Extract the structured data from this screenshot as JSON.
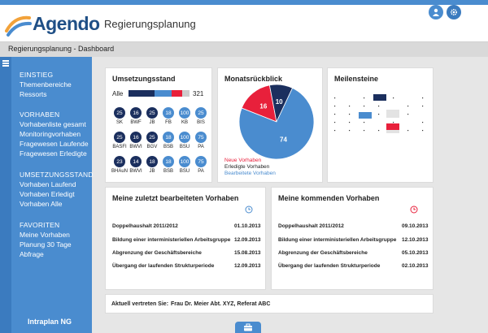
{
  "header": {
    "logo_text": "Agendo",
    "app_title": "Regierungsplanung",
    "icons": [
      "user-icon",
      "gear-icon"
    ]
  },
  "breadcrumb": "Regierungsplanung - Dashboard",
  "sidebar": {
    "groups": [
      {
        "head": "EINSTIEG",
        "items": [
          "Themenbereiche",
          "Ressorts"
        ]
      },
      {
        "head": "VORHABEN",
        "items": [
          "Vorhabenliste gesamt",
          "Monitoringvorhaben",
          "Fragewesen Laufende",
          "Fragewesen Erledigte"
        ]
      },
      {
        "head": "UMSETZUNGSSTAND",
        "items": [
          "Vorhaben Laufend",
          "Vorhaben Erledigt",
          "Vorhaben Alle"
        ]
      },
      {
        "head": "FAVORITEN",
        "items": [
          "Meine Vorhaben",
          "Planung 30 Tage",
          "Abfrage"
        ]
      }
    ],
    "footer": "Intraplan NG"
  },
  "umsetzung": {
    "title": "Umsetzungsstand",
    "alle_label": "Alle",
    "alle_count": "321",
    "alle_segments": [
      0.42,
      0.28,
      0.18,
      0.12
    ],
    "rows": [
      [
        {
          "v": "25",
          "l": "SK",
          "c": "dark"
        },
        {
          "v": "16",
          "l": "BWF",
          "c": "dark"
        },
        {
          "v": "25",
          "l": "JB",
          "c": "dark"
        },
        {
          "v": "18",
          "l": "FB",
          "c": "blue"
        },
        {
          "v": "100",
          "l": "KB",
          "c": "blue"
        },
        {
          "v": "25",
          "l": "BIS",
          "c": "blue"
        }
      ],
      [
        {
          "v": "25",
          "l": "BASFI",
          "c": "dark"
        },
        {
          "v": "16",
          "l": "BWVI",
          "c": "dark"
        },
        {
          "v": "25",
          "l": "BGV",
          "c": "dark"
        },
        {
          "v": "18",
          "l": "BSB",
          "c": "blue"
        },
        {
          "v": "100",
          "l": "BSU",
          "c": "blue"
        },
        {
          "v": "75",
          "l": "PA",
          "c": "blue"
        }
      ],
      [
        {
          "v": "23",
          "l": "BHAuN",
          "c": "dark"
        },
        {
          "v": "14",
          "l": "BWVI",
          "c": "dark"
        },
        {
          "v": "18",
          "l": "JB",
          "c": "dark"
        },
        {
          "v": "18",
          "l": "BSB",
          "c": "blue"
        },
        {
          "v": "100",
          "l": "BSU",
          "c": "blue"
        },
        {
          "v": "75",
          "l": "PA",
          "c": "blue"
        }
      ]
    ]
  },
  "monatsrueckblick": {
    "title": "Monatsrückblick",
    "legend": [
      "Neue Vorhaben",
      "Erledigte Vorhaben",
      "Bearbeitete Vorhaben"
    ]
  },
  "chart_data": {
    "type": "pie",
    "labels": [
      "Neue Vorhaben",
      "Erledigte Vorhaben",
      "Bearbeitete Vorhaben"
    ],
    "values": [
      16,
      10,
      74
    ],
    "colors": [
      "#e8203b",
      "#1b2f5e",
      "#4a8ccf"
    ]
  },
  "meilensteine": {
    "title": "Meilensteine"
  },
  "zuletzt": {
    "title": "Meine zuletzt bearbeiteten Vorhaben",
    "rows": [
      {
        "name": "Doppelhaushalt 2011/2012",
        "date": "01.10.2013"
      },
      {
        "name": "Bildung einer interministeriellen Arbeitsgruppe",
        "date": "12.09.2013"
      },
      {
        "name": "Abgrenzung der Geschäftsbereiche",
        "date": "15.08.2013"
      },
      {
        "name": "Übergang der laufenden Strukturperiode",
        "date": "12.09.2013"
      }
    ]
  },
  "kommend": {
    "title": "Meine kommenden Vorhaben",
    "rows": [
      {
        "name": "Doppelhaushalt 2011/2012",
        "date": "09.10.2013"
      },
      {
        "name": "Bildung einer interministeriellen Arbeitsgruppe",
        "date": "12.10.2013"
      },
      {
        "name": "Abgrenzung der Geschäftsbereiche",
        "date": "05.10.2013"
      },
      {
        "name": "Übergang der laufenden Strukturperiode",
        "date": "02.10.2013"
      }
    ]
  },
  "vertreten": {
    "label": "Aktuell vertreten Sie:",
    "value": "Frau Dr. Meier Abt. XYZ, Referat ABC"
  },
  "colors": {
    "blue": "#4a8ccf",
    "dark": "#1b2f5e",
    "red": "#e8203b",
    "gray": "#cccccc"
  }
}
